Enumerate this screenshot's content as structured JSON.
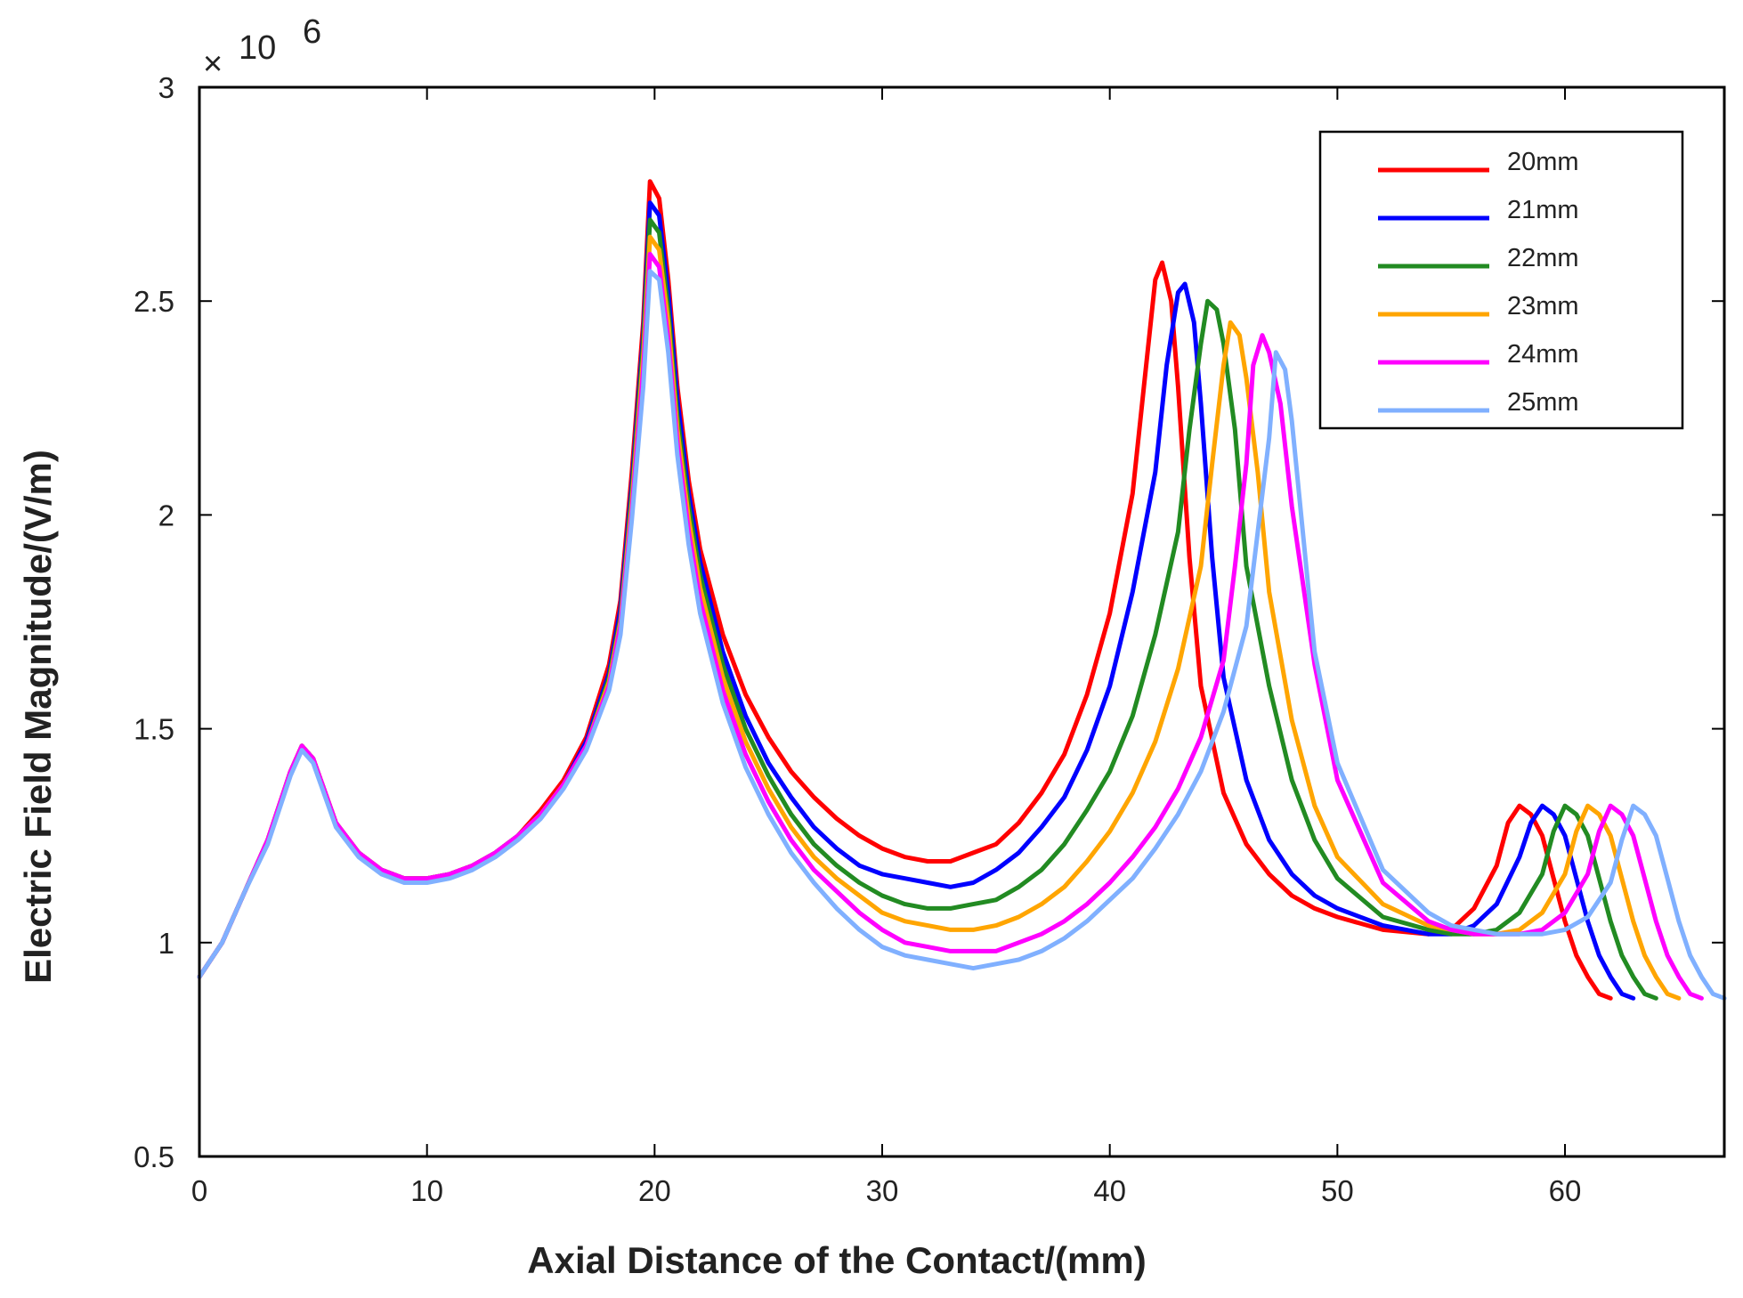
{
  "chart_data": {
    "type": "line",
    "xlabel": "Axial Distance of the Contact/(mm)",
    "ylabel": "Electric Field Magnitude/(V/m)",
    "y_multiplier": "10",
    "y_multiplier_exp": "6",
    "xlim": [
      0,
      67
    ],
    "ylim": [
      0.5,
      3
    ],
    "xticks": [
      0,
      10,
      20,
      30,
      40,
      50,
      60
    ],
    "yticks": [
      0.5,
      1,
      1.5,
      2,
      2.5,
      3
    ],
    "legend_position": "top-right",
    "grid": false,
    "series": [
      {
        "name": "20mm",
        "color": "#ff0000",
        "x": [
          0,
          1,
          2,
          3,
          4,
          4.5,
          5,
          6,
          7,
          8,
          9,
          10,
          11,
          12,
          13,
          14,
          15,
          16,
          17,
          18,
          18.5,
          19,
          19.5,
          19.8,
          20.2,
          20.6,
          21,
          21.5,
          22,
          23,
          24,
          25,
          26,
          27,
          28,
          29,
          30,
          31,
          32,
          33,
          34,
          35,
          36,
          37,
          38,
          39,
          40,
          41,
          41.5,
          42,
          42.3,
          42.7,
          43,
          43.5,
          44,
          45,
          46,
          47,
          48,
          49,
          50,
          52,
          54,
          55,
          56,
          57,
          57.5,
          58,
          58.5,
          59,
          59.5,
          60,
          60.5,
          61,
          61.5,
          62
        ],
        "y": [
          0.92,
          1.0,
          1.12,
          1.24,
          1.4,
          1.46,
          1.43,
          1.28,
          1.21,
          1.17,
          1.15,
          1.15,
          1.16,
          1.18,
          1.21,
          1.25,
          1.31,
          1.38,
          1.48,
          1.65,
          1.8,
          2.1,
          2.45,
          2.78,
          2.74,
          2.55,
          2.3,
          2.08,
          1.92,
          1.72,
          1.58,
          1.48,
          1.4,
          1.34,
          1.29,
          1.25,
          1.22,
          1.2,
          1.19,
          1.19,
          1.21,
          1.23,
          1.28,
          1.35,
          1.44,
          1.58,
          1.77,
          2.05,
          2.3,
          2.55,
          2.59,
          2.5,
          2.3,
          1.9,
          1.6,
          1.35,
          1.23,
          1.16,
          1.11,
          1.08,
          1.06,
          1.03,
          1.02,
          1.03,
          1.08,
          1.18,
          1.28,
          1.32,
          1.3,
          1.25,
          1.15,
          1.05,
          0.97,
          0.92,
          0.88,
          0.87
        ]
      },
      {
        "name": "21mm",
        "color": "#0000ff",
        "x": [
          0,
          1,
          2,
          3,
          4,
          4.5,
          5,
          6,
          7,
          8,
          9,
          10,
          11,
          12,
          13,
          14,
          15,
          16,
          17,
          18,
          18.5,
          19,
          19.5,
          19.8,
          20.2,
          20.6,
          21,
          21.5,
          22,
          23,
          24,
          25,
          26,
          27,
          28,
          29,
          30,
          31,
          32,
          33,
          34,
          35,
          36,
          37,
          38,
          39,
          40,
          41,
          42,
          42.5,
          43,
          43.3,
          43.7,
          44,
          44.5,
          45,
          46,
          47,
          48,
          49,
          50,
          52,
          54,
          55,
          56,
          57,
          58,
          58.5,
          59,
          59.5,
          60,
          60.5,
          61,
          61.5,
          62,
          62.5,
          63
        ],
        "y": [
          0.92,
          1.0,
          1.12,
          1.24,
          1.4,
          1.46,
          1.43,
          1.28,
          1.21,
          1.17,
          1.15,
          1.15,
          1.16,
          1.18,
          1.21,
          1.25,
          1.3,
          1.37,
          1.47,
          1.63,
          1.78,
          2.07,
          2.42,
          2.73,
          2.7,
          2.52,
          2.27,
          2.05,
          1.89,
          1.68,
          1.53,
          1.42,
          1.34,
          1.27,
          1.22,
          1.18,
          1.16,
          1.15,
          1.14,
          1.13,
          1.14,
          1.17,
          1.21,
          1.27,
          1.34,
          1.45,
          1.6,
          1.82,
          2.1,
          2.35,
          2.52,
          2.54,
          2.45,
          2.26,
          1.9,
          1.62,
          1.38,
          1.24,
          1.16,
          1.11,
          1.08,
          1.04,
          1.02,
          1.02,
          1.04,
          1.09,
          1.2,
          1.28,
          1.32,
          1.3,
          1.25,
          1.15,
          1.05,
          0.97,
          0.92,
          0.88,
          0.87
        ]
      },
      {
        "name": "22mm",
        "color": "#228b22",
        "x": [
          0,
          1,
          2,
          3,
          4,
          4.5,
          5,
          6,
          7,
          8,
          9,
          10,
          11,
          12,
          13,
          14,
          15,
          16,
          17,
          18,
          18.5,
          19,
          19.5,
          19.8,
          20.2,
          20.6,
          21,
          21.5,
          22,
          23,
          24,
          25,
          26,
          27,
          28,
          29,
          30,
          31,
          32,
          33,
          34,
          35,
          36,
          37,
          38,
          39,
          40,
          41,
          42,
          43,
          43.5,
          44,
          44.3,
          44.7,
          45,
          45.5,
          46,
          47,
          48,
          49,
          50,
          52,
          54,
          55,
          56,
          57,
          58,
          59,
          59.5,
          60,
          60.5,
          61,
          61.5,
          62,
          62.5,
          63,
          63.5,
          64
        ],
        "y": [
          0.92,
          1.0,
          1.12,
          1.24,
          1.4,
          1.46,
          1.43,
          1.28,
          1.21,
          1.17,
          1.15,
          1.15,
          1.16,
          1.18,
          1.21,
          1.25,
          1.3,
          1.37,
          1.46,
          1.62,
          1.76,
          2.05,
          2.4,
          2.69,
          2.66,
          2.48,
          2.23,
          2.02,
          1.86,
          1.65,
          1.5,
          1.39,
          1.3,
          1.23,
          1.18,
          1.14,
          1.11,
          1.09,
          1.08,
          1.08,
          1.09,
          1.1,
          1.13,
          1.17,
          1.23,
          1.31,
          1.4,
          1.53,
          1.72,
          1.96,
          2.2,
          2.4,
          2.5,
          2.48,
          2.4,
          2.2,
          1.88,
          1.6,
          1.38,
          1.24,
          1.15,
          1.06,
          1.03,
          1.02,
          1.02,
          1.03,
          1.07,
          1.16,
          1.26,
          1.32,
          1.3,
          1.25,
          1.15,
          1.05,
          0.97,
          0.92,
          0.88,
          0.87
        ]
      },
      {
        "name": "23mm",
        "color": "#ffa500",
        "x": [
          0,
          1,
          2,
          3,
          4,
          4.5,
          5,
          6,
          7,
          8,
          9,
          10,
          11,
          12,
          13,
          14,
          15,
          16,
          17,
          18,
          18.5,
          19,
          19.5,
          19.8,
          20.2,
          20.6,
          21,
          21.5,
          22,
          23,
          24,
          25,
          26,
          27,
          28,
          29,
          30,
          31,
          32,
          33,
          34,
          35,
          36,
          37,
          38,
          39,
          40,
          41,
          42,
          43,
          44,
          44.5,
          45,
          45.3,
          45.7,
          46,
          46.5,
          47,
          48,
          49,
          50,
          52,
          54,
          55,
          56,
          57,
          58,
          59,
          60,
          60.5,
          61,
          61.5,
          62,
          62.5,
          63,
          63.5,
          64,
          64.5,
          65
        ],
        "y": [
          0.92,
          1.0,
          1.12,
          1.24,
          1.4,
          1.46,
          1.43,
          1.28,
          1.21,
          1.17,
          1.15,
          1.15,
          1.16,
          1.18,
          1.21,
          1.25,
          1.3,
          1.37,
          1.46,
          1.61,
          1.75,
          2.03,
          2.37,
          2.65,
          2.62,
          2.45,
          2.2,
          1.99,
          1.83,
          1.62,
          1.47,
          1.36,
          1.27,
          1.2,
          1.15,
          1.11,
          1.07,
          1.05,
          1.04,
          1.03,
          1.03,
          1.04,
          1.06,
          1.09,
          1.13,
          1.19,
          1.26,
          1.35,
          1.47,
          1.64,
          1.88,
          2.12,
          2.35,
          2.45,
          2.42,
          2.32,
          2.1,
          1.82,
          1.52,
          1.32,
          1.2,
          1.09,
          1.04,
          1.03,
          1.02,
          1.02,
          1.03,
          1.07,
          1.16,
          1.26,
          1.32,
          1.3,
          1.25,
          1.15,
          1.05,
          0.97,
          0.92,
          0.88,
          0.87
        ]
      },
      {
        "name": "24mm",
        "color": "#ff00ff",
        "x": [
          0,
          1,
          2,
          3,
          4,
          4.5,
          5,
          6,
          7,
          8,
          9,
          10,
          11,
          12,
          13,
          14,
          15,
          16,
          17,
          18,
          18.5,
          19,
          19.5,
          19.8,
          20.2,
          20.6,
          21,
          21.5,
          22,
          23,
          24,
          25,
          26,
          27,
          28,
          29,
          30,
          31,
          32,
          33,
          34,
          35,
          36,
          37,
          38,
          39,
          40,
          41,
          42,
          43,
          44,
          45,
          45.5,
          46,
          46.3,
          46.7,
          47,
          47.5,
          48,
          49,
          50,
          52,
          54,
          55,
          56,
          57,
          58,
          59,
          60,
          61,
          61.5,
          62,
          62.5,
          63,
          63.5,
          64,
          64.5,
          65,
          65.5,
          66
        ],
        "y": [
          0.92,
          1.0,
          1.12,
          1.24,
          1.4,
          1.46,
          1.43,
          1.28,
          1.21,
          1.17,
          1.15,
          1.15,
          1.16,
          1.18,
          1.21,
          1.25,
          1.3,
          1.37,
          1.46,
          1.6,
          1.74,
          2.01,
          2.34,
          2.61,
          2.58,
          2.41,
          2.17,
          1.96,
          1.8,
          1.59,
          1.44,
          1.33,
          1.24,
          1.17,
          1.12,
          1.07,
          1.03,
          1.0,
          0.99,
          0.98,
          0.98,
          0.98,
          1.0,
          1.02,
          1.05,
          1.09,
          1.14,
          1.2,
          1.27,
          1.36,
          1.48,
          1.66,
          1.88,
          2.12,
          2.35,
          2.42,
          2.38,
          2.26,
          2.02,
          1.65,
          1.38,
          1.14,
          1.05,
          1.03,
          1.02,
          1.02,
          1.02,
          1.03,
          1.07,
          1.16,
          1.26,
          1.32,
          1.3,
          1.25,
          1.15,
          1.05,
          0.97,
          0.92,
          0.88,
          0.87
        ]
      },
      {
        "name": "25mm",
        "color": "#80b0ff",
        "x": [
          0,
          1,
          2,
          3,
          4,
          4.5,
          5,
          6,
          7,
          8,
          9,
          10,
          11,
          12,
          13,
          14,
          15,
          16,
          17,
          18,
          18.5,
          19,
          19.5,
          19.8,
          20.2,
          20.6,
          21,
          21.5,
          22,
          23,
          24,
          25,
          26,
          27,
          28,
          29,
          30,
          31,
          32,
          33,
          34,
          35,
          36,
          37,
          38,
          39,
          40,
          41,
          42,
          43,
          44,
          45,
          46,
          46.5,
          47,
          47.3,
          47.7,
          48,
          48.5,
          49,
          50,
          52,
          54,
          55,
          56,
          57,
          58,
          59,
          60,
          61,
          62,
          62.5,
          63,
          63.5,
          64,
          64.5,
          65,
          65.5,
          66,
          66.5,
          67
        ],
        "y": [
          0.92,
          1.0,
          1.12,
          1.23,
          1.39,
          1.45,
          1.42,
          1.27,
          1.2,
          1.16,
          1.14,
          1.14,
          1.15,
          1.17,
          1.2,
          1.24,
          1.29,
          1.36,
          1.45,
          1.59,
          1.72,
          1.99,
          2.3,
          2.57,
          2.55,
          2.38,
          2.14,
          1.93,
          1.77,
          1.56,
          1.41,
          1.3,
          1.21,
          1.14,
          1.08,
          1.03,
          0.99,
          0.97,
          0.96,
          0.95,
          0.94,
          0.95,
          0.96,
          0.98,
          1.01,
          1.05,
          1.1,
          1.15,
          1.22,
          1.3,
          1.4,
          1.54,
          1.74,
          1.96,
          2.18,
          2.38,
          2.34,
          2.22,
          1.95,
          1.68,
          1.42,
          1.17,
          1.07,
          1.04,
          1.03,
          1.02,
          1.02,
          1.02,
          1.03,
          1.06,
          1.14,
          1.24,
          1.32,
          1.3,
          1.25,
          1.15,
          1.05,
          0.97,
          0.92,
          0.88,
          0.87
        ]
      }
    ]
  }
}
